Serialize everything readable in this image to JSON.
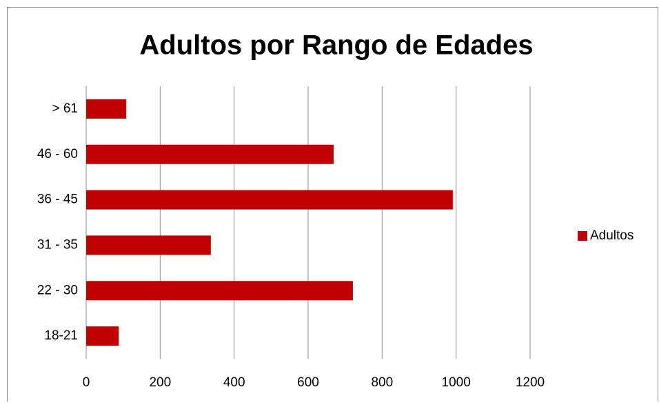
{
  "chart_data": {
    "type": "bar",
    "orientation": "horizontal",
    "title": "Adultos por Rango de Edades",
    "categories": [
      "18-21",
      "22 - 30",
      "31 - 35",
      "36 - 45",
      "46 - 60",
      "> 61"
    ],
    "series": [
      {
        "name": "Adultos",
        "color": "#c00000",
        "values": [
          88,
          721,
          337,
          991,
          669,
          108
        ]
      }
    ],
    "xlim": [
      0,
      1200
    ],
    "xticks": [
      0,
      200,
      400,
      600,
      800,
      1000,
      1200
    ],
    "grid": true,
    "legend": "right"
  }
}
